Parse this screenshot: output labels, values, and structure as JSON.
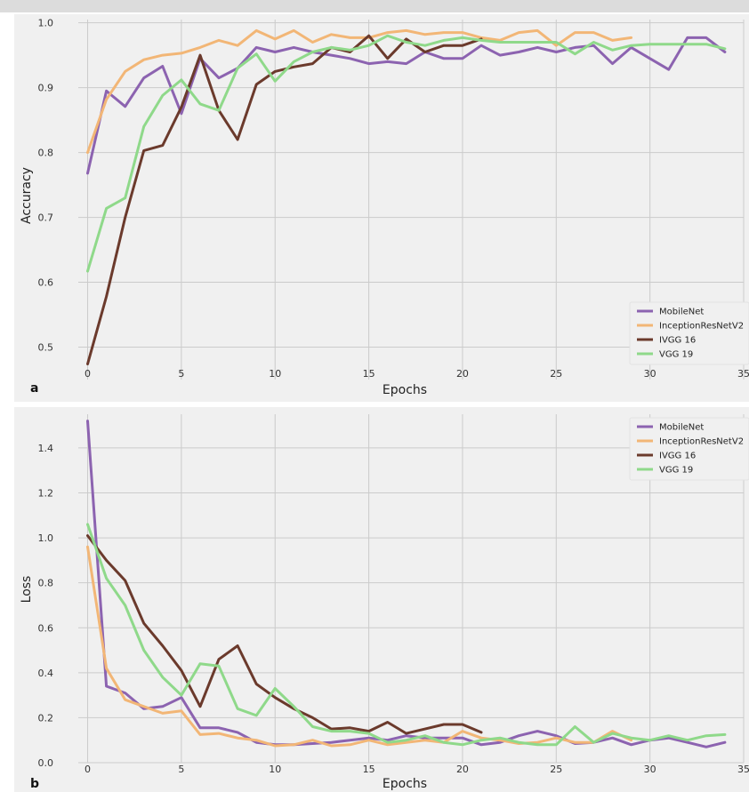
{
  "chart_data": [
    {
      "type": "line",
      "panel_label": "a",
      "xlabel": "Epochs",
      "ylabel": "Accuracy",
      "xlim": [
        -0.5,
        35
      ],
      "ylim": [
        0.45,
        1.005
      ],
      "xticks": [
        0,
        5,
        10,
        15,
        20,
        25,
        30,
        35
      ],
      "yticks": [
        0.5,
        0.6,
        0.7,
        0.8,
        0.9,
        1.0
      ],
      "ytick_labels": [
        "0.5",
        "0.6",
        "0.7",
        "0.8",
        "0.9",
        "1.0"
      ],
      "grid": true,
      "legend_position": "bottom-right",
      "series": [
        {
          "name": "MobileNet",
          "color": "#8c63b0",
          "x": [
            0,
            1,
            2,
            3,
            4,
            5,
            6,
            7,
            8,
            9,
            10,
            11,
            12,
            13,
            14,
            15,
            16,
            17,
            18,
            19,
            20,
            21,
            22,
            23,
            24,
            25,
            26,
            27,
            28,
            29,
            30,
            31,
            32,
            33,
            34
          ],
          "y": [
            0.768,
            0.895,
            0.871,
            0.915,
            0.933,
            0.86,
            0.945,
            0.915,
            0.93,
            0.962,
            0.955,
            0.962,
            0.955,
            0.95,
            0.945,
            0.937,
            0.94,
            0.937,
            0.955,
            0.945,
            0.945,
            0.965,
            0.95,
            0.955,
            0.962,
            0.955,
            0.962,
            0.965,
            0.937,
            0.962,
            0.945,
            0.928,
            0.977,
            0.977,
            0.955
          ]
        },
        {
          "name": "InceptionResNetV2",
          "color": "#f2b676",
          "x": [
            0,
            1,
            2,
            3,
            4,
            5,
            6,
            7,
            8,
            9,
            10,
            11,
            12,
            13,
            14,
            15,
            16,
            17,
            18,
            19,
            20,
            21,
            22,
            23,
            24,
            25,
            26,
            27,
            28,
            29
          ],
          "y": [
            0.8,
            0.882,
            0.925,
            0.943,
            0.95,
            0.953,
            0.962,
            0.973,
            0.965,
            0.988,
            0.975,
            0.988,
            0.97,
            0.982,
            0.977,
            0.977,
            0.985,
            0.988,
            0.982,
            0.985,
            0.985,
            0.977,
            0.973,
            0.985,
            0.988,
            0.965,
            0.985,
            0.985,
            0.973,
            0.977
          ]
        },
        {
          "name": "IVGG 16",
          "color": "#6b3a2c",
          "x": [
            0,
            1,
            2,
            3,
            4,
            5,
            6,
            7,
            8,
            9,
            10,
            11,
            12,
            13,
            14,
            15,
            16,
            17,
            18,
            19,
            20,
            21
          ],
          "y": [
            0.474,
            0.578,
            0.7,
            0.803,
            0.811,
            0.87,
            0.95,
            0.865,
            0.82,
            0.905,
            0.925,
            0.932,
            0.937,
            0.962,
            0.955,
            0.98,
            0.945,
            0.975,
            0.955,
            0.965,
            0.965,
            0.975
          ]
        },
        {
          "name": "VGG 19",
          "color": "#8fd98a",
          "x": [
            0,
            1,
            2,
            3,
            4,
            5,
            6,
            7,
            8,
            9,
            10,
            11,
            12,
            13,
            14,
            15,
            16,
            17,
            18,
            19,
            20,
            21,
            22,
            23,
            24,
            25,
            26,
            27,
            28,
            29,
            30,
            31,
            32,
            33,
            34
          ],
          "y": [
            0.617,
            0.714,
            0.73,
            0.84,
            0.888,
            0.912,
            0.875,
            0.865,
            0.93,
            0.952,
            0.91,
            0.94,
            0.955,
            0.962,
            0.958,
            0.965,
            0.98,
            0.97,
            0.965,
            0.973,
            0.977,
            0.973,
            0.97,
            0.97,
            0.97,
            0.97,
            0.952,
            0.97,
            0.958,
            0.965,
            0.967,
            0.967,
            0.967,
            0.967,
            0.96
          ]
        }
      ]
    },
    {
      "type": "line",
      "panel_label": "b",
      "xlabel": "Epochs",
      "ylabel": "Loss",
      "xlim": [
        -0.5,
        35
      ],
      "ylim": [
        0,
        1.55
      ],
      "xticks": [
        0,
        5,
        10,
        15,
        20,
        25,
        30,
        35
      ],
      "yticks": [
        0.0,
        0.2,
        0.4,
        0.6,
        0.8,
        1.0,
        1.2,
        1.4
      ],
      "ytick_labels": [
        "0.0",
        "0.2",
        "0.4",
        "0.6",
        "0.8",
        "1.0",
        "1.2",
        "1.4"
      ],
      "grid": true,
      "legend_position": "top-right",
      "series": [
        {
          "name": "MobileNet",
          "color": "#8c63b0",
          "x": [
            0,
            1,
            2,
            3,
            4,
            5,
            6,
            7,
            8,
            9,
            10,
            11,
            12,
            13,
            14,
            15,
            16,
            17,
            18,
            19,
            20,
            21,
            22,
            23,
            24,
            25,
            26,
            27,
            28,
            29,
            30,
            31,
            32,
            33,
            34
          ],
          "y": [
            1.52,
            0.34,
            0.31,
            0.24,
            0.25,
            0.29,
            0.155,
            0.155,
            0.135,
            0.09,
            0.08,
            0.08,
            0.085,
            0.09,
            0.1,
            0.11,
            0.1,
            0.12,
            0.11,
            0.11,
            0.11,
            0.08,
            0.09,
            0.12,
            0.14,
            0.12,
            0.085,
            0.09,
            0.11,
            0.08,
            0.1,
            0.11,
            0.09,
            0.07,
            0.09
          ]
        },
        {
          "name": "InceptionResNetV2",
          "color": "#f2b676",
          "x": [
            0,
            1,
            2,
            3,
            4,
            5,
            6,
            7,
            8,
            9,
            10,
            11,
            12,
            13,
            14,
            15,
            16,
            17,
            18,
            19,
            20,
            21,
            22,
            23,
            24,
            25,
            26,
            27,
            28,
            29
          ],
          "y": [
            0.96,
            0.42,
            0.28,
            0.25,
            0.22,
            0.23,
            0.125,
            0.13,
            0.11,
            0.1,
            0.075,
            0.08,
            0.1,
            0.075,
            0.08,
            0.1,
            0.08,
            0.09,
            0.1,
            0.09,
            0.14,
            0.11,
            0.1,
            0.085,
            0.09,
            0.11,
            0.09,
            0.09,
            0.14,
            0.1
          ]
        },
        {
          "name": "IVGG 16",
          "color": "#6b3a2c",
          "x": [
            0,
            1,
            2,
            3,
            4,
            5,
            6,
            7,
            8,
            9,
            10,
            11,
            12,
            13,
            14,
            15,
            16,
            17,
            18,
            19,
            20,
            21
          ],
          "y": [
            1.01,
            0.9,
            0.81,
            0.62,
            0.52,
            0.41,
            0.25,
            0.46,
            0.52,
            0.35,
            0.29,
            0.24,
            0.2,
            0.15,
            0.155,
            0.14,
            0.18,
            0.13,
            0.15,
            0.17,
            0.17,
            0.135
          ]
        },
        {
          "name": "VGG 19",
          "color": "#8fd98a",
          "x": [
            0,
            1,
            2,
            3,
            4,
            5,
            6,
            7,
            8,
            9,
            10,
            11,
            12,
            13,
            14,
            15,
            16,
            17,
            18,
            19,
            20,
            21,
            22,
            23,
            24,
            25,
            26,
            27,
            28,
            29,
            30,
            31,
            32,
            33,
            34
          ],
          "y": [
            1.06,
            0.82,
            0.7,
            0.5,
            0.38,
            0.3,
            0.44,
            0.43,
            0.24,
            0.21,
            0.33,
            0.25,
            0.16,
            0.14,
            0.14,
            0.13,
            0.09,
            0.1,
            0.12,
            0.09,
            0.08,
            0.1,
            0.11,
            0.09,
            0.08,
            0.08,
            0.16,
            0.09,
            0.13,
            0.11,
            0.1,
            0.12,
            0.1,
            0.12,
            0.125
          ]
        }
      ]
    }
  ]
}
